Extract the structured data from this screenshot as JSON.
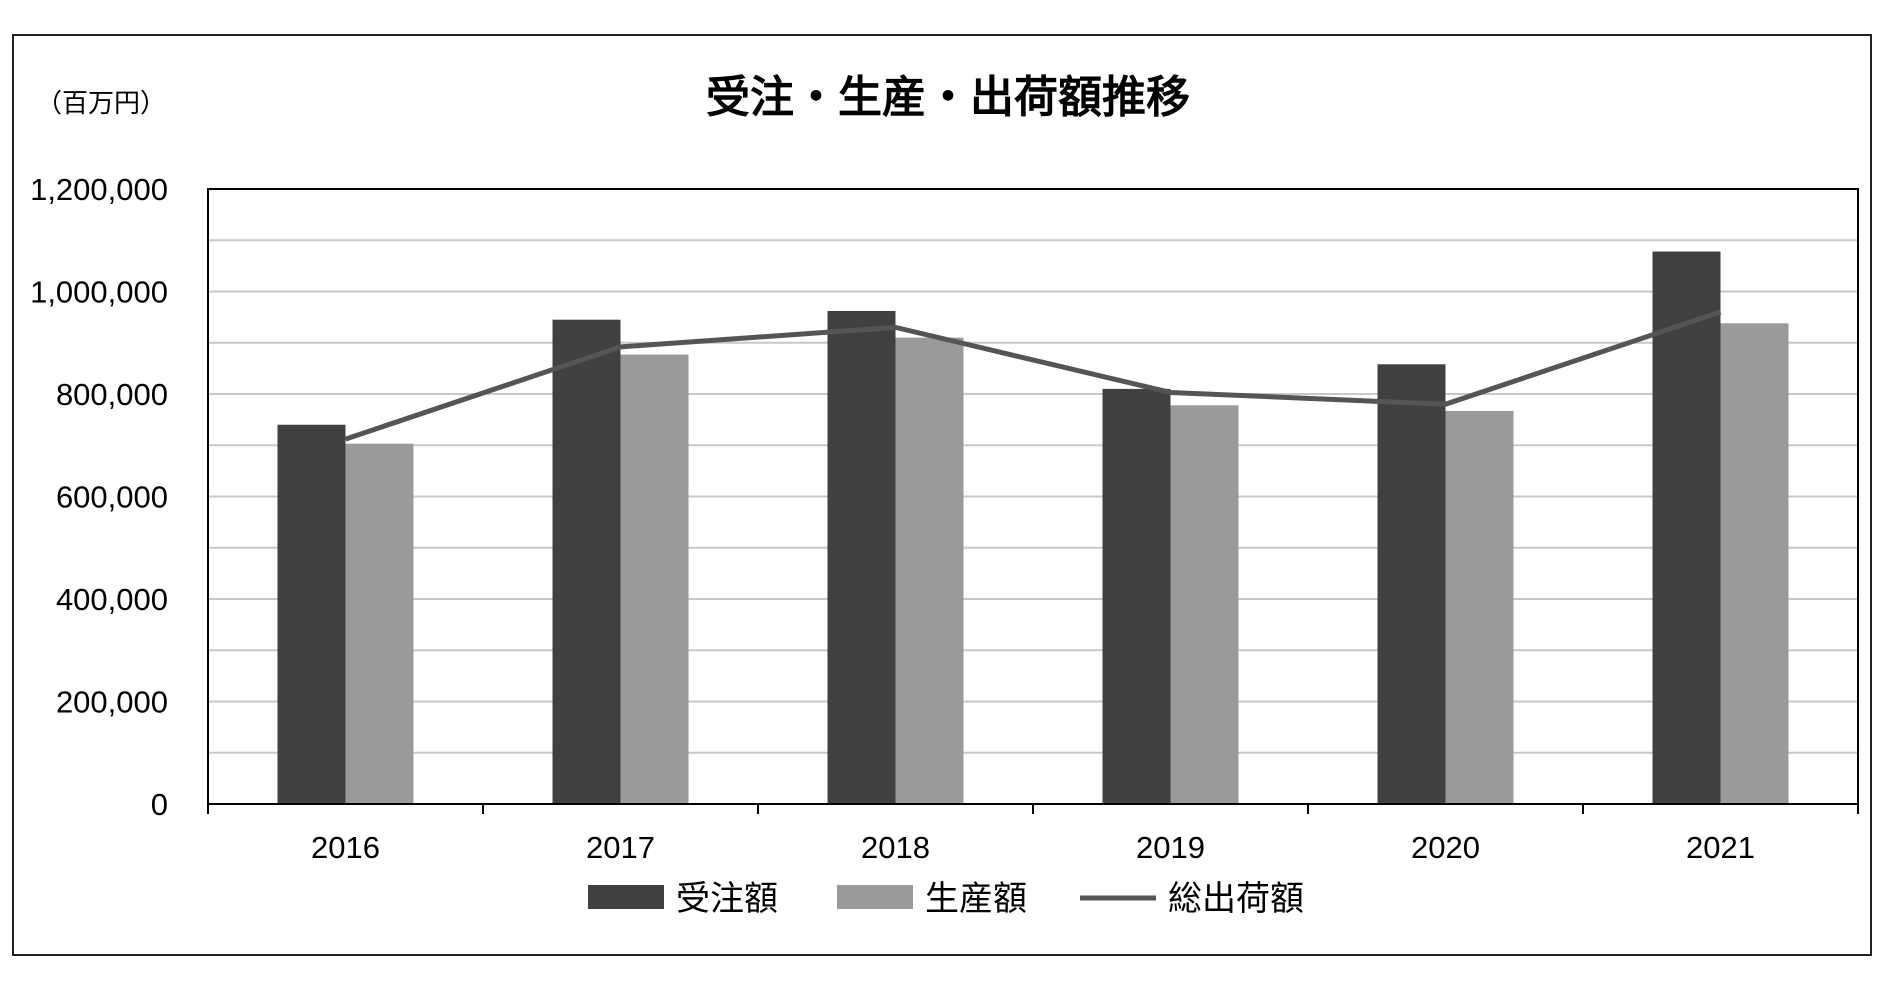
{
  "chart_data": {
    "type": "bar",
    "title": "受注・生産・出荷額推移",
    "unit_label": "（百万円）",
    "categories": [
      "2016",
      "2017",
      "2018",
      "2019",
      "2020",
      "2021"
    ],
    "series": [
      {
        "name": "受注額",
        "kind": "bar",
        "color": "#404040",
        "values": [
          740000,
          945000,
          962000,
          810000,
          858000,
          1078000
        ]
      },
      {
        "name": "生産額",
        "kind": "bar",
        "color": "#9a9a9a",
        "values": [
          703000,
          877000,
          910000,
          778000,
          767000,
          938000
        ]
      },
      {
        "name": "総出荷額",
        "kind": "line",
        "color": "#555555",
        "values": [
          712000,
          892000,
          930000,
          803000,
          780000,
          960000
        ]
      }
    ],
    "ylim": [
      0,
      1200000
    ],
    "yticks": [
      "0",
      "200,000",
      "400,000",
      "600,000",
      "800,000",
      "1,000,000",
      "1,200,000"
    ],
    "grid": true,
    "legend_position": "bottom"
  }
}
